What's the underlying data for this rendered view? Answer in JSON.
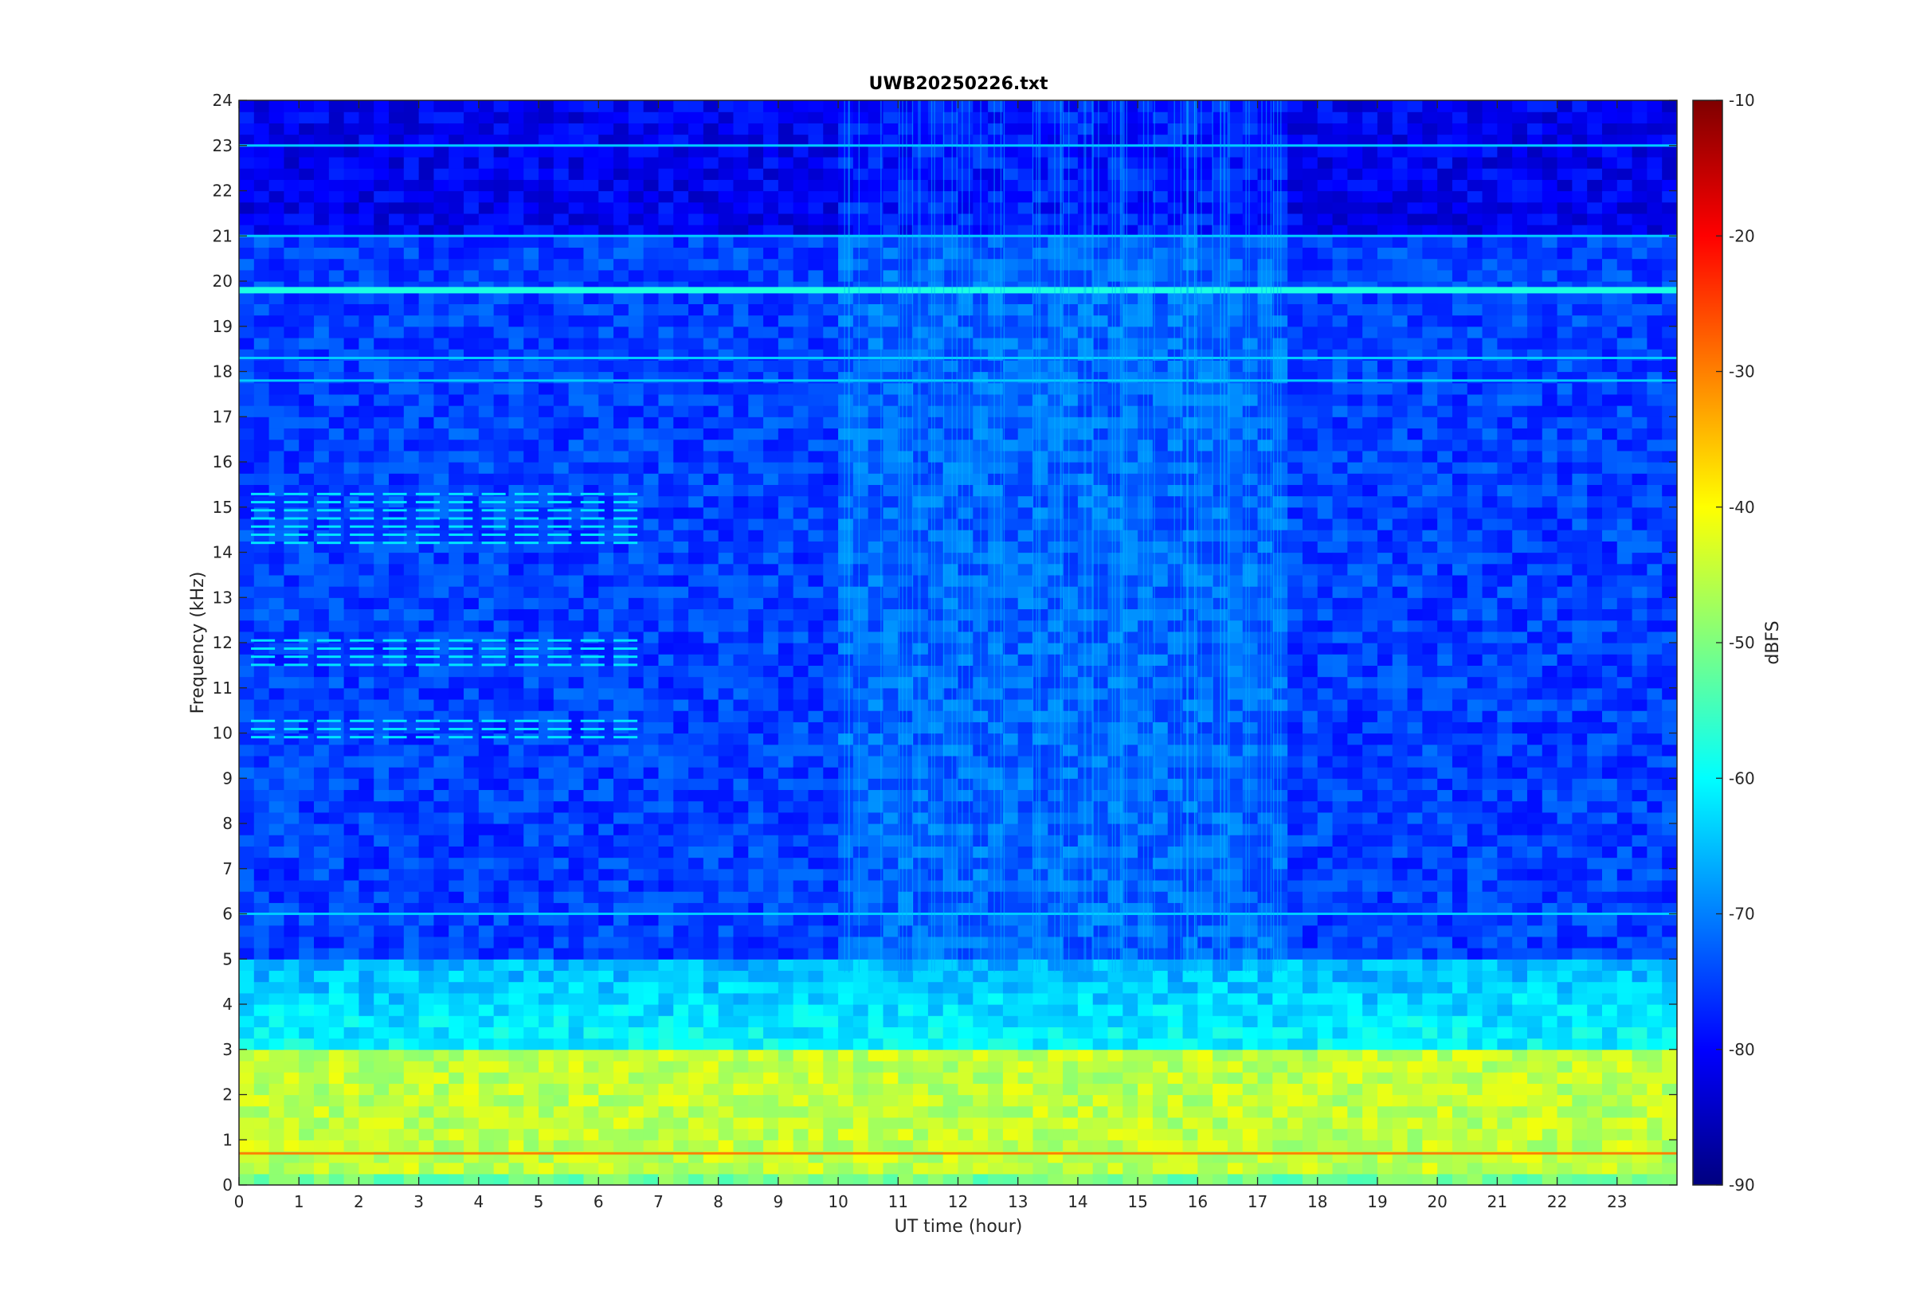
{
  "chart_data": {
    "type": "heatmap",
    "title": "UWB20250226.txt",
    "xlabel": "UT time (hour)",
    "ylabel": "Frequency (kHz)",
    "xlim": [
      0,
      24
    ],
    "ylim": [
      0,
      24
    ],
    "x_ticks": [
      "0",
      "1",
      "2",
      "3",
      "4",
      "5",
      "6",
      "7",
      "8",
      "9",
      "10",
      "11",
      "12",
      "13",
      "14",
      "15",
      "16",
      "17",
      "18",
      "19",
      "20",
      "21",
      "22",
      "23"
    ],
    "y_ticks": [
      "0",
      "1",
      "2",
      "3",
      "4",
      "5",
      "6",
      "7",
      "8",
      "9",
      "10",
      "11",
      "12",
      "13",
      "14",
      "15",
      "16",
      "17",
      "18",
      "19",
      "20",
      "21",
      "22",
      "23",
      "24"
    ],
    "colorbar": {
      "label": "dBFS",
      "range": [
        -90,
        -10
      ],
      "ticks": [
        "-10",
        "-20",
        "-30",
        "-40",
        "-50",
        "-60",
        "-70",
        "-80",
        "-90"
      ],
      "colormap": "jet"
    },
    "features": {
      "persistent_lines_khz": [
        19.8,
        18.3,
        17.8,
        21.0,
        23.0,
        6.0,
        0.7
      ],
      "intermittent_tone_bands_khz": [
        [
          14.2,
          15.4
        ],
        [
          9.9,
          10.3
        ],
        [
          11.5,
          12.2
        ]
      ],
      "low_band_level_dbfs_0_to_3khz": -45,
      "mid_band_level_dbfs_3_to_5khz": -60,
      "high_band_level_dbfs_5_to_24khz": -75
    }
  }
}
